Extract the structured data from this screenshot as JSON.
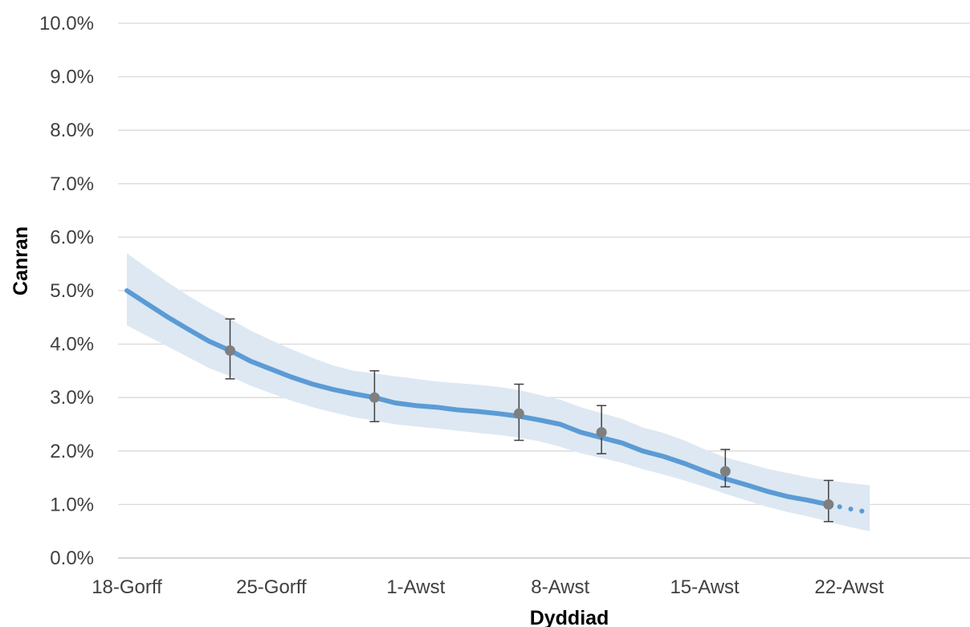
{
  "chart_data": {
    "type": "line",
    "title": "",
    "xlabel": "Dyddiad",
    "ylabel": "Canran",
    "x_ticks": [
      "18-Gorff",
      "25-Gorff",
      "1-Awst",
      "8-Awst",
      "15-Awst",
      "22-Awst"
    ],
    "y_ticks": [
      "0.0%",
      "1.0%",
      "2.0%",
      "3.0%",
      "4.0%",
      "5.0%",
      "6.0%",
      "7.0%",
      "8.0%",
      "9.0%",
      "10.0%"
    ],
    "ylim": [
      0,
      10
    ],
    "y_unit": "%",
    "grid": true,
    "legend": "none",
    "colors": {
      "line": "#5b9bd5",
      "band": "#dde8f2",
      "point": "#7f7f7f",
      "error_bar": "#404040",
      "grid": "#d9d9d9",
      "axis": "#bfbfbf"
    },
    "series": [
      {
        "style": "solid",
        "values": [
          {
            "date": "2020-07-18",
            "y": 5.0,
            "lower": 4.35,
            "upper": 5.7
          },
          {
            "date": "2020-07-19",
            "y": 4.75,
            "lower": 4.15,
            "upper": 5.42
          },
          {
            "date": "2020-07-20",
            "y": 4.5,
            "lower": 3.95,
            "upper": 5.15
          },
          {
            "date": "2020-07-21",
            "y": 4.27,
            "lower": 3.75,
            "upper": 4.9
          },
          {
            "date": "2020-07-22",
            "y": 4.05,
            "lower": 3.55,
            "upper": 4.67
          },
          {
            "date": "2020-07-23",
            "y": 3.88,
            "lower": 3.4,
            "upper": 4.47
          },
          {
            "date": "2020-07-24",
            "y": 3.68,
            "lower": 3.22,
            "upper": 4.25
          },
          {
            "date": "2020-07-25",
            "y": 3.53,
            "lower": 3.08,
            "upper": 4.07
          },
          {
            "date": "2020-07-26",
            "y": 3.38,
            "lower": 2.94,
            "upper": 3.9
          },
          {
            "date": "2020-07-27",
            "y": 3.25,
            "lower": 2.82,
            "upper": 3.74
          },
          {
            "date": "2020-07-28",
            "y": 3.15,
            "lower": 2.72,
            "upper": 3.6
          },
          {
            "date": "2020-07-29",
            "y": 3.07,
            "lower": 2.63,
            "upper": 3.5
          },
          {
            "date": "2020-07-30",
            "y": 3.0,
            "lower": 2.57,
            "upper": 3.45
          },
          {
            "date": "2020-07-31",
            "y": 2.9,
            "lower": 2.5,
            "upper": 3.4
          },
          {
            "date": "2020-08-01",
            "y": 2.85,
            "lower": 2.46,
            "upper": 3.35
          },
          {
            "date": "2020-08-02",
            "y": 2.82,
            "lower": 2.42,
            "upper": 3.3
          },
          {
            "date": "2020-08-03",
            "y": 2.77,
            "lower": 2.38,
            "upper": 3.27
          },
          {
            "date": "2020-08-04",
            "y": 2.74,
            "lower": 2.34,
            "upper": 3.24
          },
          {
            "date": "2020-08-05",
            "y": 2.7,
            "lower": 2.3,
            "upper": 3.2
          },
          {
            "date": "2020-08-06",
            "y": 2.65,
            "lower": 2.25,
            "upper": 3.14
          },
          {
            "date": "2020-08-07",
            "y": 2.58,
            "lower": 2.18,
            "upper": 3.05
          },
          {
            "date": "2020-08-08",
            "y": 2.5,
            "lower": 2.08,
            "upper": 2.96
          },
          {
            "date": "2020-08-09",
            "y": 2.35,
            "lower": 1.96,
            "upper": 2.82
          },
          {
            "date": "2020-08-10",
            "y": 2.25,
            "lower": 1.87,
            "upper": 2.71
          },
          {
            "date": "2020-08-11",
            "y": 2.15,
            "lower": 1.78,
            "upper": 2.6
          },
          {
            "date": "2020-08-12",
            "y": 2.0,
            "lower": 1.66,
            "upper": 2.44
          },
          {
            "date": "2020-08-13",
            "y": 1.9,
            "lower": 1.56,
            "upper": 2.34
          },
          {
            "date": "2020-08-14",
            "y": 1.77,
            "lower": 1.45,
            "upper": 2.2
          },
          {
            "date": "2020-08-15",
            "y": 1.62,
            "lower": 1.33,
            "upper": 2.03
          },
          {
            "date": "2020-08-16",
            "y": 1.48,
            "lower": 1.2,
            "upper": 1.88
          },
          {
            "date": "2020-08-17",
            "y": 1.37,
            "lower": 1.08,
            "upper": 1.78
          },
          {
            "date": "2020-08-18",
            "y": 1.25,
            "lower": 0.96,
            "upper": 1.67
          },
          {
            "date": "2020-08-19",
            "y": 1.15,
            "lower": 0.86,
            "upper": 1.59
          },
          {
            "date": "2020-08-20",
            "y": 1.08,
            "lower": 0.78,
            "upper": 1.51
          },
          {
            "date": "2020-08-21",
            "y": 1.0,
            "lower": 0.68,
            "upper": 1.45
          }
        ]
      },
      {
        "style": "dotted",
        "values": [
          {
            "date": "2020-08-21",
            "y": 1.0,
            "lower": 0.68,
            "upper": 1.45
          },
          {
            "date": "2020-08-22",
            "y": 0.92,
            "lower": 0.58,
            "upper": 1.4
          },
          {
            "date": "2020-08-23",
            "y": 0.85,
            "lower": 0.5,
            "upper": 1.36
          }
        ]
      }
    ],
    "error_bars": [
      {
        "date": "2020-07-23",
        "y": 3.88,
        "lower": 3.35,
        "upper": 4.47
      },
      {
        "date": "2020-07-30",
        "y": 3.0,
        "lower": 2.55,
        "upper": 3.5
      },
      {
        "date": "2020-08-06",
        "y": 2.7,
        "lower": 2.2,
        "upper": 3.25
      },
      {
        "date": "2020-08-10",
        "y": 2.35,
        "lower": 1.95,
        "upper": 2.85
      },
      {
        "date": "2020-08-16",
        "y": 1.62,
        "lower": 1.33,
        "upper": 2.03
      },
      {
        "date": "2020-08-21",
        "y": 1.0,
        "lower": 0.68,
        "upper": 1.45
      }
    ]
  }
}
